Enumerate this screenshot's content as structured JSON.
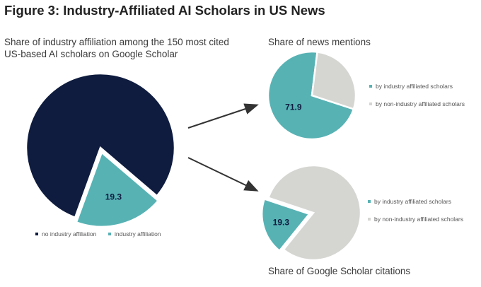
{
  "title": "Figure 3: Industry-Affiliated AI Scholars in US News",
  "colors": {
    "navy": "#0f1c3f",
    "teal": "#57b2b4",
    "grey": "#d5d5d2",
    "arrow": "#333333"
  },
  "chart_data": [
    {
      "type": "pie",
      "title": "Share of industry affiliation among  the 150 most cited US-based AI scholars on Google Scholar",
      "slices": [
        {
          "label": "no industry affiliation",
          "value": 80.7,
          "color": "#0f1c3f",
          "data_label": ""
        },
        {
          "label": "industry affiliation",
          "value": 19.3,
          "color": "#57b2b4",
          "data_label": "19.3"
        }
      ],
      "legend": [
        "no industry affiliation",
        "industry affiliation"
      ],
      "legend_position": "bottom"
    },
    {
      "type": "pie",
      "title": "Share of news mentions",
      "slices": [
        {
          "label": "by industry affiliated scholars",
          "value": 71.9,
          "color": "#57b2b4",
          "data_label": "71.9"
        },
        {
          "label": "by non-industry affiliated scholars",
          "value": 28.1,
          "color": "#d5d5d2",
          "data_label": ""
        }
      ],
      "legend": [
        "by industry affiliated scholars",
        "by non-industry affiliated scholars"
      ],
      "legend_position": "right"
    },
    {
      "type": "pie",
      "title": "Share of Google Scholar citations",
      "slices": [
        {
          "label": "by industry affiliated scholars",
          "value": 19.3,
          "color": "#57b2b4",
          "data_label": "19.3"
        },
        {
          "label": "by non-industry affiliated scholars",
          "value": 80.7,
          "color": "#d5d5d2",
          "data_label": ""
        }
      ],
      "legend": [
        "by industry affiliated scholars",
        "by non-industry affiliated scholars"
      ],
      "legend_position": "right"
    }
  ]
}
